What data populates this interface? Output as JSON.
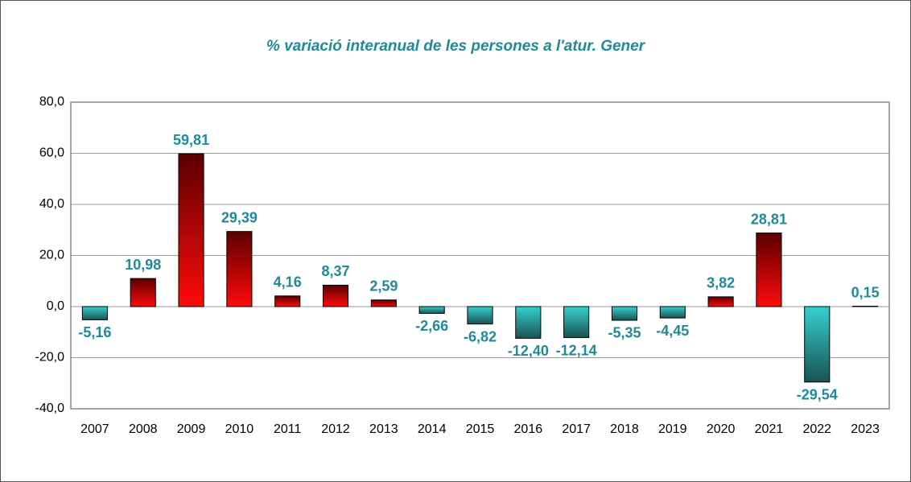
{
  "chart_data": {
    "type": "bar",
    "title": "% variació interanual de les persones a l'atur. Gener",
    "categories": [
      "2007",
      "2008",
      "2009",
      "2010",
      "2011",
      "2012",
      "2013",
      "2014",
      "2015",
      "2016",
      "2017",
      "2018",
      "2019",
      "2020",
      "2021",
      "2022",
      "2023"
    ],
    "values": [
      -5.16,
      10.98,
      59.81,
      29.39,
      4.16,
      8.37,
      2.59,
      -2.66,
      -6.82,
      -12.4,
      -12.14,
      -5.35,
      -4.45,
      3.82,
      28.81,
      -29.54,
      0.15
    ],
    "value_labels": [
      "-5,16",
      "10,98",
      "59,81",
      "29,39",
      "4,16",
      "8,37",
      "2,59",
      "-2,66",
      "-6,82",
      "-12,40",
      "-12,14",
      "-5,35",
      "-4,45",
      "3,82",
      "28,81",
      "-29,54",
      "0,15"
    ],
    "ylim": [
      -40,
      80
    ],
    "yticks": [
      {
        "value": -40,
        "label": "-40,0"
      },
      {
        "value": -20,
        "label": "-20,0"
      },
      {
        "value": 0,
        "label": "0,0"
      },
      {
        "value": 20,
        "label": "20,0"
      },
      {
        "value": 40,
        "label": "40,0"
      },
      {
        "value": 60,
        "label": "60,0"
      },
      {
        "value": 80,
        "label": "80,0"
      }
    ],
    "grid": true,
    "positive_gradient": [
      "#5c0000",
      "#ff0a0a"
    ],
    "negative_gradient": [
      "#36d0d0",
      "#1a5252"
    ],
    "label_color": "#1f8a9a"
  }
}
